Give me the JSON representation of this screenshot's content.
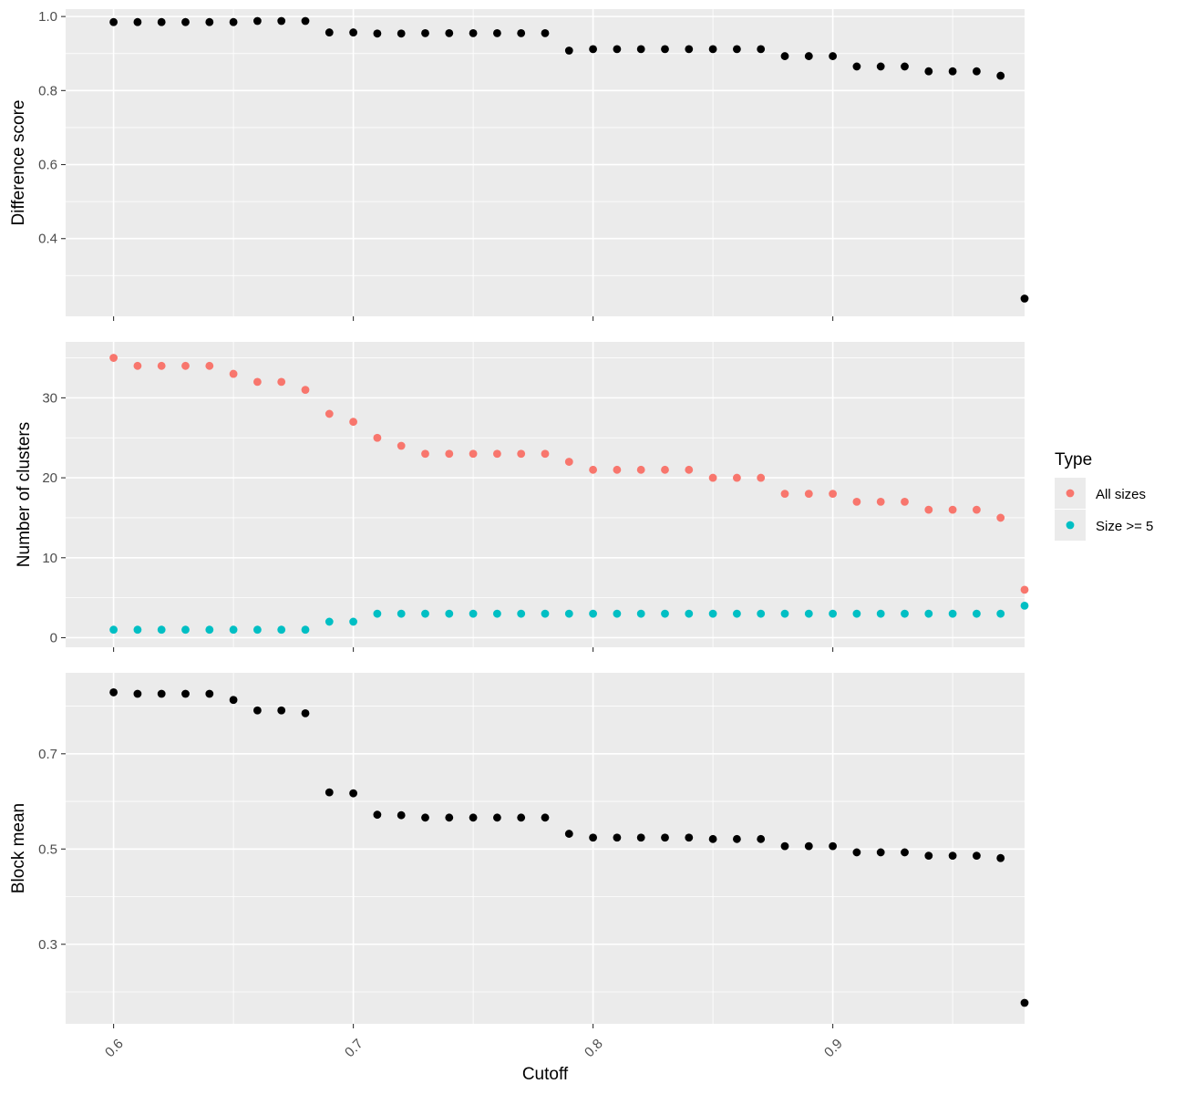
{
  "chart_data": {
    "type": "scatter",
    "x_label": "Cutoff",
    "x_range": [
      0.58,
      0.98
    ],
    "x_ticks": [
      0.6,
      0.7,
      0.8,
      0.9
    ],
    "x_tick_labels": [
      "0.6",
      "0.7",
      "0.8",
      "0.9"
    ],
    "x_minor": [
      0.65,
      0.75,
      0.85,
      0.95
    ],
    "x": [
      0.6,
      0.61,
      0.62,
      0.63,
      0.64,
      0.65,
      0.66,
      0.67,
      0.68,
      0.69,
      0.7,
      0.71,
      0.72,
      0.73,
      0.74,
      0.75,
      0.76,
      0.77,
      0.78,
      0.79,
      0.8,
      0.81,
      0.82,
      0.83,
      0.84,
      0.85,
      0.86,
      0.87,
      0.88,
      0.89,
      0.9,
      0.91,
      0.92,
      0.93,
      0.94,
      0.95,
      0.96,
      0.97,
      0.98
    ],
    "grid": true,
    "legend": {
      "title": "Type",
      "position": "right",
      "entries": [
        {
          "label": "All sizes",
          "color": "#f8766d"
        },
        {
          "label": "Size >= 5",
          "color": "#00bfc4"
        }
      ]
    },
    "panels": [
      {
        "ylabel": "Difference score",
        "y_range": [
          0.19,
          1.02
        ],
        "y_ticks": [
          0.4,
          0.6,
          0.8,
          1.0
        ],
        "y_tick_labels": [
          "0.4",
          "0.6",
          "0.8",
          "1.0"
        ],
        "y_minor": [
          0.3,
          0.5,
          0.7,
          0.9
        ],
        "series": [
          {
            "color": "#000000",
            "values": [
              0.985,
              0.985,
              0.985,
              0.985,
              0.985,
              0.985,
              0.988,
              0.988,
              0.988,
              0.957,
              0.957,
              0.954,
              0.954,
              0.955,
              0.955,
              0.955,
              0.955,
              0.955,
              0.955,
              0.908,
              0.912,
              0.912,
              0.912,
              0.912,
              0.912,
              0.912,
              0.912,
              0.912,
              0.893,
              0.893,
              0.893,
              0.865,
              0.865,
              0.865,
              0.852,
              0.852,
              0.852,
              0.84,
              0.238
            ]
          }
        ]
      },
      {
        "ylabel": "Number of clusters",
        "y_range": [
          -1.2,
          37.0
        ],
        "y_ticks": [
          0,
          10,
          20,
          30
        ],
        "y_tick_labels": [
          "0",
          "10",
          "20",
          "30"
        ],
        "y_minor": [
          5,
          15,
          25,
          35
        ],
        "series": [
          {
            "name": "All sizes",
            "color": "#f8766d",
            "values": [
              35,
              34,
              34,
              34,
              34,
              33,
              32,
              32,
              31,
              28,
              27,
              25,
              24,
              23,
              23,
              23,
              23,
              23,
              23,
              22,
              21,
              21,
              21,
              21,
              21,
              20,
              20,
              20,
              18,
              18,
              18,
              17,
              17,
              17,
              16,
              16,
              16,
              15,
              6
            ]
          },
          {
            "name": "Size >= 5",
            "color": "#00bfc4",
            "values": [
              1,
              1,
              1,
              1,
              1,
              1,
              1,
              1,
              1,
              2,
              2,
              3,
              3,
              3,
              3,
              3,
              3,
              3,
              3,
              3,
              3,
              3,
              3,
              3,
              3,
              3,
              3,
              3,
              3,
              3,
              3,
              3,
              3,
              3,
              3,
              3,
              3,
              3,
              4
            ]
          }
        ]
      },
      {
        "ylabel": "Block mean",
        "y_range": [
          0.133,
          0.87
        ],
        "y_ticks": [
          0.3,
          0.5,
          0.7
        ],
        "y_tick_labels": [
          "0.3",
          "0.5",
          "0.7"
        ],
        "y_minor": [
          0.2,
          0.4,
          0.6,
          0.8
        ],
        "series": [
          {
            "color": "#000000",
            "values": [
              0.829,
              0.826,
              0.826,
              0.826,
              0.826,
              0.813,
              0.791,
              0.791,
              0.785,
              0.619,
              0.617,
              0.572,
              0.571,
              0.566,
              0.566,
              0.566,
              0.566,
              0.566,
              0.566,
              0.532,
              0.524,
              0.524,
              0.524,
              0.524,
              0.524,
              0.521,
              0.521,
              0.521,
              0.506,
              0.506,
              0.506,
              0.493,
              0.493,
              0.493,
              0.486,
              0.486,
              0.486,
              0.481,
              0.177
            ]
          }
        ]
      }
    ]
  }
}
